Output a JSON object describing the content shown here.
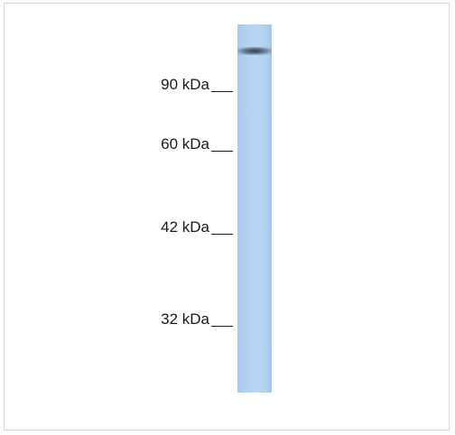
{
  "markers": [
    {
      "label": "90 kDa"
    },
    {
      "label": "60 kDa"
    },
    {
      "label": "42 kDa"
    },
    {
      "label": "32 kDa"
    }
  ],
  "colors": {
    "lane": "#b3d2f1",
    "band": "#3a4657",
    "border": "#d9d9d9"
  }
}
